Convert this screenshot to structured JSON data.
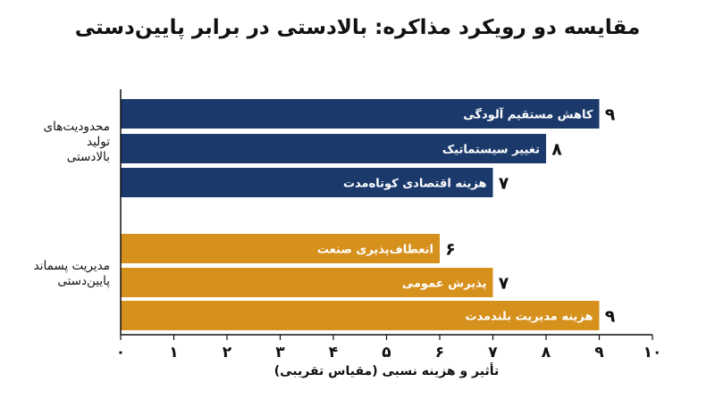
{
  "title": "مقایسه دو رویکرد مذاکره: بالادستی در برابر پایین‌دستی",
  "chart_data": {
    "type": "bar",
    "orientation": "horizontal",
    "xlabel": "تأثیر و هزینه نسبی (مقیاس تقریبی)",
    "xlim": [
      0,
      10
    ],
    "x_ticks": [
      "۰",
      "۱",
      "۲",
      "۳",
      "۴",
      "۵",
      "۶",
      "۷",
      "۸",
      "۹",
      "۱۰"
    ],
    "grid": false,
    "groups": [
      {
        "label_lines": [
          "محدودیت‌های",
          "تولید",
          "بالادستی"
        ],
        "color": "#1b3a6b",
        "bars": [
          {
            "category": "کاهش مستقیم آلودگی",
            "value": 9,
            "value_label": "۹"
          },
          {
            "category": "تغییر سیستماتیک",
            "value": 8,
            "value_label": "۸"
          },
          {
            "category": "هزینه اقتصادی کوتاه‌مدت",
            "value": 7,
            "value_label": "۷"
          }
        ]
      },
      {
        "label_lines": [
          "مدیریت پسماند",
          "پایین‌دستی"
        ],
        "color": "#d6901c",
        "bars": [
          {
            "category": "انعطاف‌پذیری صنعت",
            "value": 6,
            "value_label": "۶"
          },
          {
            "category": "پذیرش عمومی",
            "value": 7,
            "value_label": "۷"
          },
          {
            "category": "هزینه مدیریت بلندمدت",
            "value": 9,
            "value_label": "۹"
          }
        ]
      }
    ]
  }
}
